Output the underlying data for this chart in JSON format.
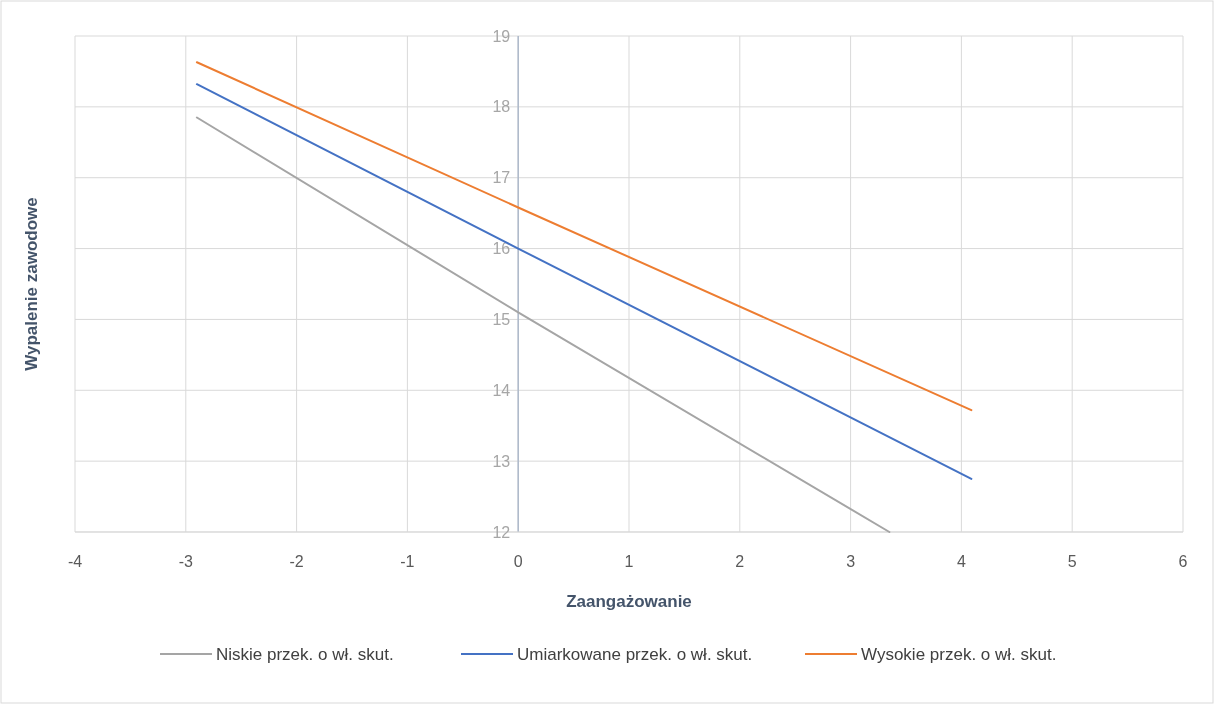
{
  "chart_data": {
    "type": "line",
    "xlabel": "Zaangażowanie",
    "ylabel": "Wypalenie zawodowe",
    "xlim": [
      -4,
      6
    ],
    "xticks": [
      -4,
      -3,
      -2,
      -1,
      0,
      1,
      2,
      3,
      4,
      5,
      6
    ],
    "ylim": [
      12,
      19
    ],
    "yticks": [
      12,
      13,
      14,
      15,
      16,
      17,
      18,
      19
    ],
    "grid": true,
    "legend": "bottom",
    "line_style": "solid",
    "series": [
      {
        "name": "Niskie przek. o wł. skut.",
        "color": "#a5a5a5",
        "x": [
          -2.9,
          0,
          3.35
        ],
        "values": [
          17.85,
          15.1,
          12
        ]
      },
      {
        "name": "Umiarkowane przek. o wł. skut.",
        "color": "#4472c4",
        "x": [
          -2.9,
          0,
          4.09
        ],
        "values": [
          18.32,
          16.0,
          12.75
        ]
      },
      {
        "name": "Wysokie przek. o wł. skut.",
        "color": "#ed7d31",
        "x": [
          -2.9,
          0,
          4.09
        ],
        "values": [
          18.63,
          16.58,
          13.72
        ]
      }
    ]
  }
}
